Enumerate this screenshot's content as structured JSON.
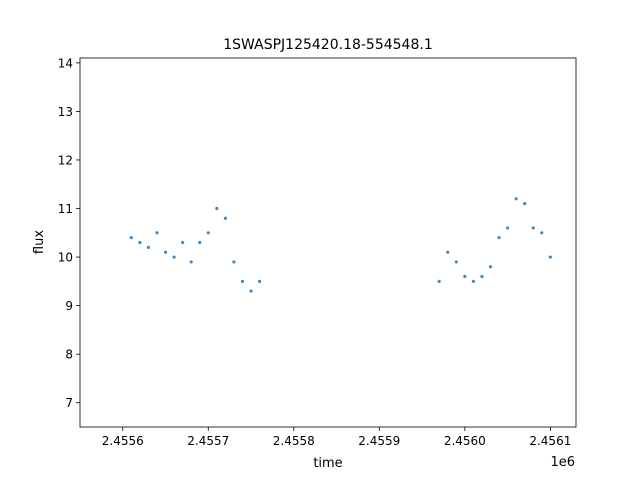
{
  "chart_data": {
    "type": "scatter",
    "title": "1SWASPJ125420.18-554548.1",
    "xlabel": "time",
    "ylabel": "flux",
    "x_offset_label": "1e6",
    "xlim": [
      2.45555,
      2.45613
    ],
    "ylim": [
      6.5,
      14.1
    ],
    "x_ticks": [
      2.4556,
      2.4557,
      2.4558,
      2.4559,
      2.456,
      2.4561
    ],
    "x_tick_labels": [
      "2.4556",
      "2.4557",
      "2.4558",
      "2.4559",
      "2.4560",
      "2.4561"
    ],
    "y_ticks": [
      7,
      8,
      9,
      10,
      11,
      12,
      13,
      14
    ],
    "y_tick_labels": [
      "7",
      "8",
      "9",
      "10",
      "11",
      "12",
      "13",
      "14"
    ],
    "grid": false,
    "legend": "none",
    "color": "#1f77b4",
    "marker": "point",
    "series": [
      {
        "points": [
          [
            2.45561,
            10.4
          ],
          [
            2.45562,
            10.3
          ],
          [
            2.45563,
            10.2
          ],
          [
            2.45564,
            10.5
          ],
          [
            2.45565,
            10.1
          ],
          [
            2.45566,
            10.0
          ],
          [
            2.45567,
            10.3
          ],
          [
            2.45568,
            9.9
          ],
          [
            2.45569,
            10.3
          ],
          [
            2.4557,
            10.5
          ],
          [
            2.45571,
            11.0
          ],
          [
            2.45572,
            10.8
          ],
          [
            2.45573,
            9.9
          ],
          [
            2.45574,
            9.5
          ],
          [
            2.45575,
            9.3
          ],
          [
            2.45576,
            9.5
          ],
          [
            2.45597,
            9.5
          ],
          [
            2.45598,
            10.1
          ],
          [
            2.45599,
            9.9
          ],
          [
            2.456,
            9.6
          ],
          [
            2.45601,
            9.5
          ],
          [
            2.45602,
            9.6
          ],
          [
            2.45603,
            9.8
          ],
          [
            2.45604,
            10.4
          ],
          [
            2.45605,
            10.6
          ],
          [
            2.45606,
            11.2
          ],
          [
            2.45607,
            11.1
          ],
          [
            2.45608,
            10.6
          ],
          [
            2.45609,
            10.5
          ],
          [
            2.4561,
            10.0
          ]
        ]
      }
    ]
  }
}
